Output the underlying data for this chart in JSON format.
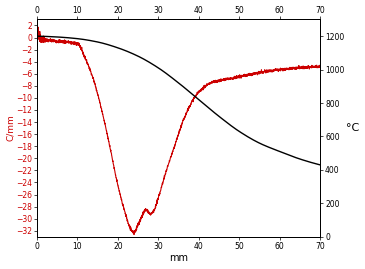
{
  "xlabel": "mm",
  "ylabel_left": "C/mm",
  "ylabel_right": "°C",
  "xlim": [
    0,
    70
  ],
  "ylim_left": [
    -33,
    3
  ],
  "ylim_right": [
    0,
    1300
  ],
  "yticks_left": [
    2,
    0,
    -2,
    -4,
    -6,
    -8,
    -10,
    -12,
    -14,
    -16,
    -18,
    -20,
    -22,
    -24,
    -26,
    -28,
    -30,
    -32
  ],
  "yticks_right": [
    0,
    200,
    400,
    600,
    800,
    1000,
    1200
  ],
  "xticks": [
    0,
    10,
    20,
    30,
    40,
    50,
    60,
    70
  ],
  "color_black": "#000000",
  "color_red": "#cc0000",
  "background_color": "#ffffff",
  "temp_x": [
    0,
    5,
    10,
    15,
    20,
    25,
    30,
    35,
    40,
    45,
    50,
    55,
    60,
    65,
    70
  ],
  "temp_y": [
    1200,
    1195,
    1185,
    1165,
    1130,
    1080,
    1010,
    920,
    820,
    720,
    630,
    560,
    510,
    465,
    430
  ],
  "grad_x": [
    0,
    0.5,
    1.0,
    2.0,
    3.0,
    5.0,
    7.0,
    9.0,
    10.0,
    12.0,
    14.0,
    16.0,
    18.0,
    20.0,
    22.0,
    23.0,
    24.0,
    25.0,
    26.0,
    27.0,
    28.0,
    29.0,
    30.0,
    32.0,
    34.0,
    36.0,
    38.0,
    40.0,
    43.0,
    46.0,
    50.0,
    55.0,
    60.0,
    65.0,
    70.0
  ],
  "grad_y": [
    2.5,
    0.5,
    -0.2,
    -0.4,
    -0.5,
    -0.6,
    -0.7,
    -0.9,
    -1.0,
    -3.5,
    -7.0,
    -12.0,
    -18.0,
    -24.5,
    -29.5,
    -31.5,
    -32.2,
    -31.0,
    -29.5,
    -28.5,
    -29.2,
    -28.5,
    -26.5,
    -22.0,
    -18.0,
    -14.0,
    -11.0,
    -9.0,
    -7.5,
    -7.0,
    -6.5,
    -5.8,
    -5.3,
    -5.0,
    -4.8
  ]
}
